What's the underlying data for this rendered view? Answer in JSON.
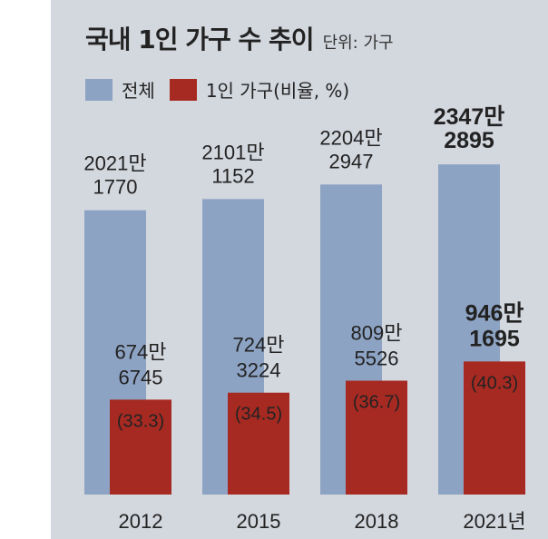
{
  "chart_data": {
    "type": "bar",
    "title": "국내 1인 가구 수 추이",
    "unit_label": "단위: 가구",
    "categories": [
      "2012",
      "2015",
      "2018",
      "2021년"
    ],
    "series": [
      {
        "name": "전체",
        "color": "#8da3c3",
        "values": [
          20211770,
          21011152,
          22042947,
          23472895
        ],
        "labels": [
          [
            "2021만",
            "1770"
          ],
          [
            "2101만",
            "1152"
          ],
          [
            "2204만",
            "2947"
          ],
          [
            "2347만",
            "2895"
          ]
        ]
      },
      {
        "name": "1인 가구(비율, %)",
        "color": "#a72a22",
        "values": [
          6746745,
          7243224,
          8095526,
          9461695
        ],
        "labels": [
          [
            "674만",
            "6745"
          ],
          [
            "724만",
            "3224"
          ],
          [
            "809만",
            "5526"
          ],
          [
            "946만",
            "1695"
          ]
        ],
        "ratios": [
          "(33.3)",
          "(34.5)",
          "(36.7)",
          "(40.3)"
        ]
      }
    ],
    "ylim": [
      0,
      25000000
    ],
    "grid": false,
    "legend_position": "top-left"
  }
}
